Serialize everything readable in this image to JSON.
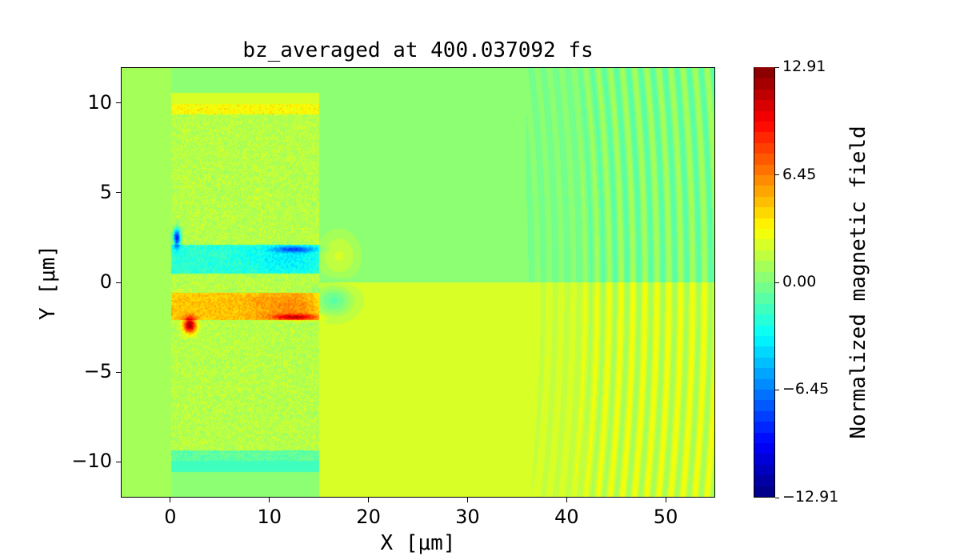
{
  "chart_data": {
    "type": "heatmap",
    "title": "bz_averaged at 400.037092 fs",
    "xlabel": "X [μm]",
    "ylabel": "Y [μm]",
    "xlim": [
      -5,
      55
    ],
    "ylim": [
      -12,
      12
    ],
    "xticks": [
      0,
      10,
      20,
      30,
      40,
      50
    ],
    "yticks": [
      -10,
      -5,
      0,
      5,
      10
    ],
    "xtick_labels": [
      "0",
      "10",
      "20",
      "30",
      "40",
      "50"
    ],
    "ytick_labels": [
      "−10",
      "−5",
      "0",
      "5",
      "10"
    ],
    "colormap": "jet",
    "colorbar": {
      "label": "Normalized magnetic field",
      "vmin": -12.91,
      "vmax": 12.91,
      "ticks": [
        12.91,
        6.45,
        0.0,
        -6.45,
        -12.91
      ],
      "tick_labels": [
        "12.91",
        "6.45",
        "0.00",
        "−6.45",
        "−12.91"
      ],
      "levels": 40
    },
    "grid": false
  }
}
